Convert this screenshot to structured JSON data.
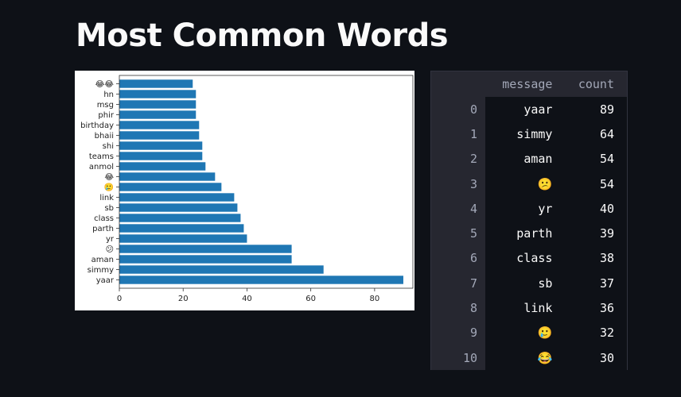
{
  "page": {
    "title": "Most Common Words"
  },
  "table": {
    "columns": [
      "message",
      "count"
    ],
    "rows": [
      {
        "index": "0",
        "message": "yaar",
        "count": "89"
      },
      {
        "index": "1",
        "message": "simmy",
        "count": "64"
      },
      {
        "index": "2",
        "message": "aman",
        "count": "54"
      },
      {
        "index": "3",
        "message": "😕",
        "count": "54"
      },
      {
        "index": "4",
        "message": "yr",
        "count": "40"
      },
      {
        "index": "5",
        "message": "parth",
        "count": "39"
      },
      {
        "index": "6",
        "message": "class",
        "count": "38"
      },
      {
        "index": "7",
        "message": "sb",
        "count": "37"
      },
      {
        "index": "8",
        "message": "link",
        "count": "36"
      },
      {
        "index": "9",
        "message": "🥲",
        "count": "32"
      },
      {
        "index": "10",
        "message": "😂",
        "count": "30"
      }
    ]
  },
  "chart_data": {
    "type": "bar",
    "orientation": "horizontal",
    "categories": [
      "yaar",
      "simmy",
      "aman",
      "😕",
      "yr",
      "parth",
      "class",
      "sb",
      "link",
      "🥲",
      "😂",
      "anmol",
      "teams",
      "shi",
      "bhaii",
      "birthday",
      "phir",
      "msg",
      "hn",
      "😂😂"
    ],
    "values": [
      89,
      64,
      54,
      54,
      40,
      39,
      38,
      37,
      36,
      32,
      30,
      27,
      26,
      26,
      25,
      25,
      24,
      24,
      24,
      23
    ],
    "xlim": [
      0,
      92
    ],
    "xticks": [
      "0",
      "20",
      "40",
      "60",
      "80"
    ],
    "bar_color": "#1f77b4",
    "grid": false,
    "title": "",
    "xlabel": "",
    "ylabel": ""
  }
}
